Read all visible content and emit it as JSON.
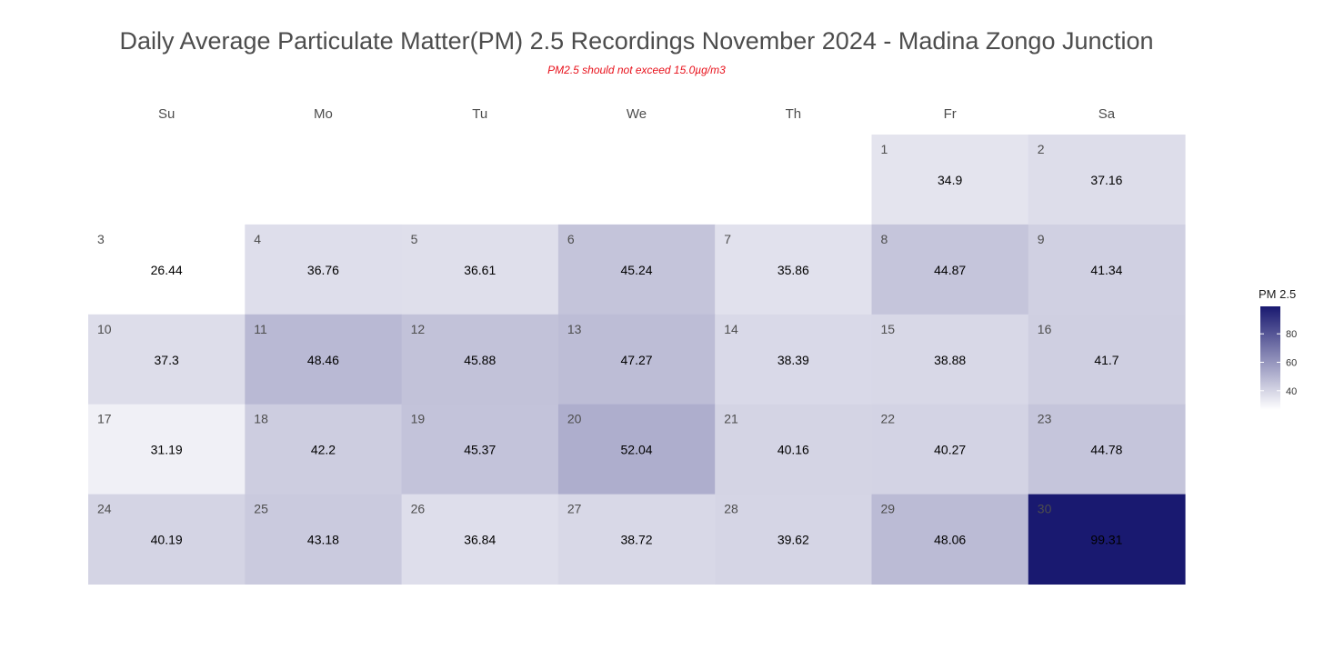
{
  "chart_data": {
    "type": "heatmap",
    "title": "Daily Average Particulate Matter(PM) 2.5 Recordings November 2024 -  Madina Zongo Junction",
    "subtitle": "PM2.5 should not exceed 15.0µg/m3",
    "weekdays": [
      "Su",
      "Mo",
      "Tu",
      "We",
      "Th",
      "Fr",
      "Sa"
    ],
    "first_weekday_index": 5,
    "days": [
      {
        "day": 1,
        "value": 34.9
      },
      {
        "day": 2,
        "value": 37.16
      },
      {
        "day": 3,
        "value": 26.44
      },
      {
        "day": 4,
        "value": 36.76
      },
      {
        "day": 5,
        "value": 36.61
      },
      {
        "day": 6,
        "value": 45.24
      },
      {
        "day": 7,
        "value": 35.86
      },
      {
        "day": 8,
        "value": 44.87
      },
      {
        "day": 9,
        "value": 41.34
      },
      {
        "day": 10,
        "value": 37.3
      },
      {
        "day": 11,
        "value": 48.46
      },
      {
        "day": 12,
        "value": 45.88
      },
      {
        "day": 13,
        "value": 47.27
      },
      {
        "day": 14,
        "value": 38.39
      },
      {
        "day": 15,
        "value": 38.88
      },
      {
        "day": 16,
        "value": 41.7
      },
      {
        "day": 17,
        "value": 31.19
      },
      {
        "day": 18,
        "value": 42.2
      },
      {
        "day": 19,
        "value": 45.37
      },
      {
        "day": 20,
        "value": 52.04
      },
      {
        "day": 21,
        "value": 40.16
      },
      {
        "day": 22,
        "value": 40.27
      },
      {
        "day": 23,
        "value": 44.78
      },
      {
        "day": 24,
        "value": 40.19
      },
      {
        "day": 25,
        "value": 43.18
      },
      {
        "day": 26,
        "value": 36.84
      },
      {
        "day": 27,
        "value": 38.72
      },
      {
        "day": 28,
        "value": 39.62
      },
      {
        "day": 29,
        "value": 48.06
      },
      {
        "day": 30,
        "value": 99.31
      }
    ],
    "legend": {
      "title": "PM 2.5",
      "ticks": [
        40,
        60,
        80
      ],
      "range": [
        26.44,
        99.31
      ],
      "color_low": "#ffffff",
      "color_high": "#191970",
      "placement": "right"
    }
  }
}
